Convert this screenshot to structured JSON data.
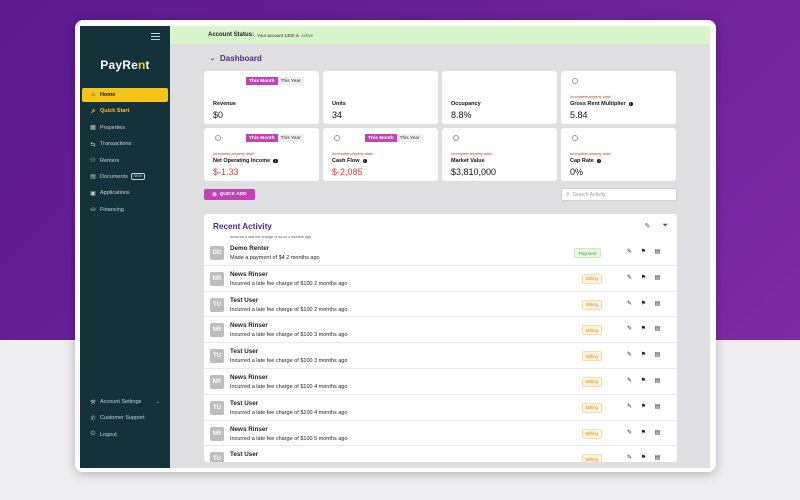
{
  "colors": {
    "sidebar": "#14323a",
    "accent_yellow": "#f5c518",
    "accent_magenta": "#c142b3",
    "title_purple": "#4e2a7a",
    "status_bg": "#d8f5cc",
    "negative": "#d63b3b"
  },
  "brand": {
    "logo_main": "PayRe",
    "logo_accent": "n",
    "logo_end": "t"
  },
  "sidebar": {
    "items": [
      {
        "label": "Home",
        "icon": "home-icon",
        "glyph": "⌂"
      },
      {
        "label": "Quick Start",
        "icon": "rocket-icon",
        "glyph": "➚"
      },
      {
        "label": "Properties",
        "icon": "building-icon",
        "glyph": "▦"
      },
      {
        "label": "Transactions",
        "icon": "transfer-icon",
        "glyph": "⇆"
      },
      {
        "label": "Renters",
        "icon": "people-icon",
        "glyph": "⚇"
      },
      {
        "label": "Documents",
        "icon": "document-icon",
        "glyph": "▤",
        "badge": "NEW"
      },
      {
        "label": "Applications",
        "icon": "application-icon",
        "glyph": "▣"
      },
      {
        "label": "Financing",
        "icon": "lock-icon",
        "glyph": "⛀"
      }
    ],
    "bottom": [
      {
        "label": "Account Settings",
        "icon": "tools-icon",
        "glyph": "⚒"
      },
      {
        "label": "Customer Support",
        "icon": "support-icon",
        "glyph": "✆"
      },
      {
        "label": "Logout",
        "icon": "power-icon",
        "glyph": "⏻"
      }
    ]
  },
  "status": {
    "label": "Account Status:",
    "text": "Your account 1300 is",
    "state": "Active"
  },
  "dashboard": {
    "title": "Dashboard",
    "toggle_on": "This Month",
    "toggle_off": "This Year",
    "warning": "Incomplete property data!",
    "cards": [
      {
        "label": "Revenue",
        "value": "$0"
      },
      {
        "label": "Units",
        "value": "34"
      },
      {
        "label": "Occupancy",
        "value": "8.8%"
      },
      {
        "label": "Gross Rent Multiplier",
        "value": "5.84"
      },
      {
        "label": "Net Operating Income",
        "value": "$-1.33"
      },
      {
        "label": "Cash Flow",
        "value": "$-2,085"
      },
      {
        "label": "Market Value",
        "value": "$3,810,000"
      },
      {
        "label": "Cap Rate",
        "value": "0%"
      }
    ]
  },
  "quick_add": {
    "label": "QUICK ADD"
  },
  "search": {
    "placeholder": "Search Activity"
  },
  "activity": {
    "title": "Recent Activity",
    "cut_row": "Incurred a late fee charge of $100 2 months ago",
    "rows": [
      {
        "initials": "DD",
        "name": "Demo Renter",
        "desc": "Made a payment of $4 2 months ago",
        "badge": "Payment"
      },
      {
        "initials": "NR",
        "name": "News Rinser",
        "desc": "Incurred a late fee charge of $100 2 months ago",
        "badge": "Billing"
      },
      {
        "initials": "TU",
        "name": "Test User",
        "desc": "Incurred a late fee charge of $100 2 months ago",
        "badge": "Billing"
      },
      {
        "initials": "NR",
        "name": "News Rinser",
        "desc": "Incurred a late fee charge of $100 3 months ago",
        "badge": "Billing"
      },
      {
        "initials": "TU",
        "name": "Test User",
        "desc": "Incurred a late fee charge of $100 3 months ago",
        "badge": "Billing"
      },
      {
        "initials": "NR",
        "name": "News Rinser",
        "desc": "Incurred a late fee charge of $100 4 months ago",
        "badge": "Billing"
      },
      {
        "initials": "TU",
        "name": "Test User",
        "desc": "Incurred a late fee charge of $100 4 months ago",
        "badge": "Billing"
      },
      {
        "initials": "NR",
        "name": "News Rinser",
        "desc": "Incurred a late fee charge of $100 5 months ago",
        "badge": "Billing"
      },
      {
        "initials": "TU",
        "name": "Test User",
        "desc": "",
        "badge": "Billing"
      }
    ]
  }
}
